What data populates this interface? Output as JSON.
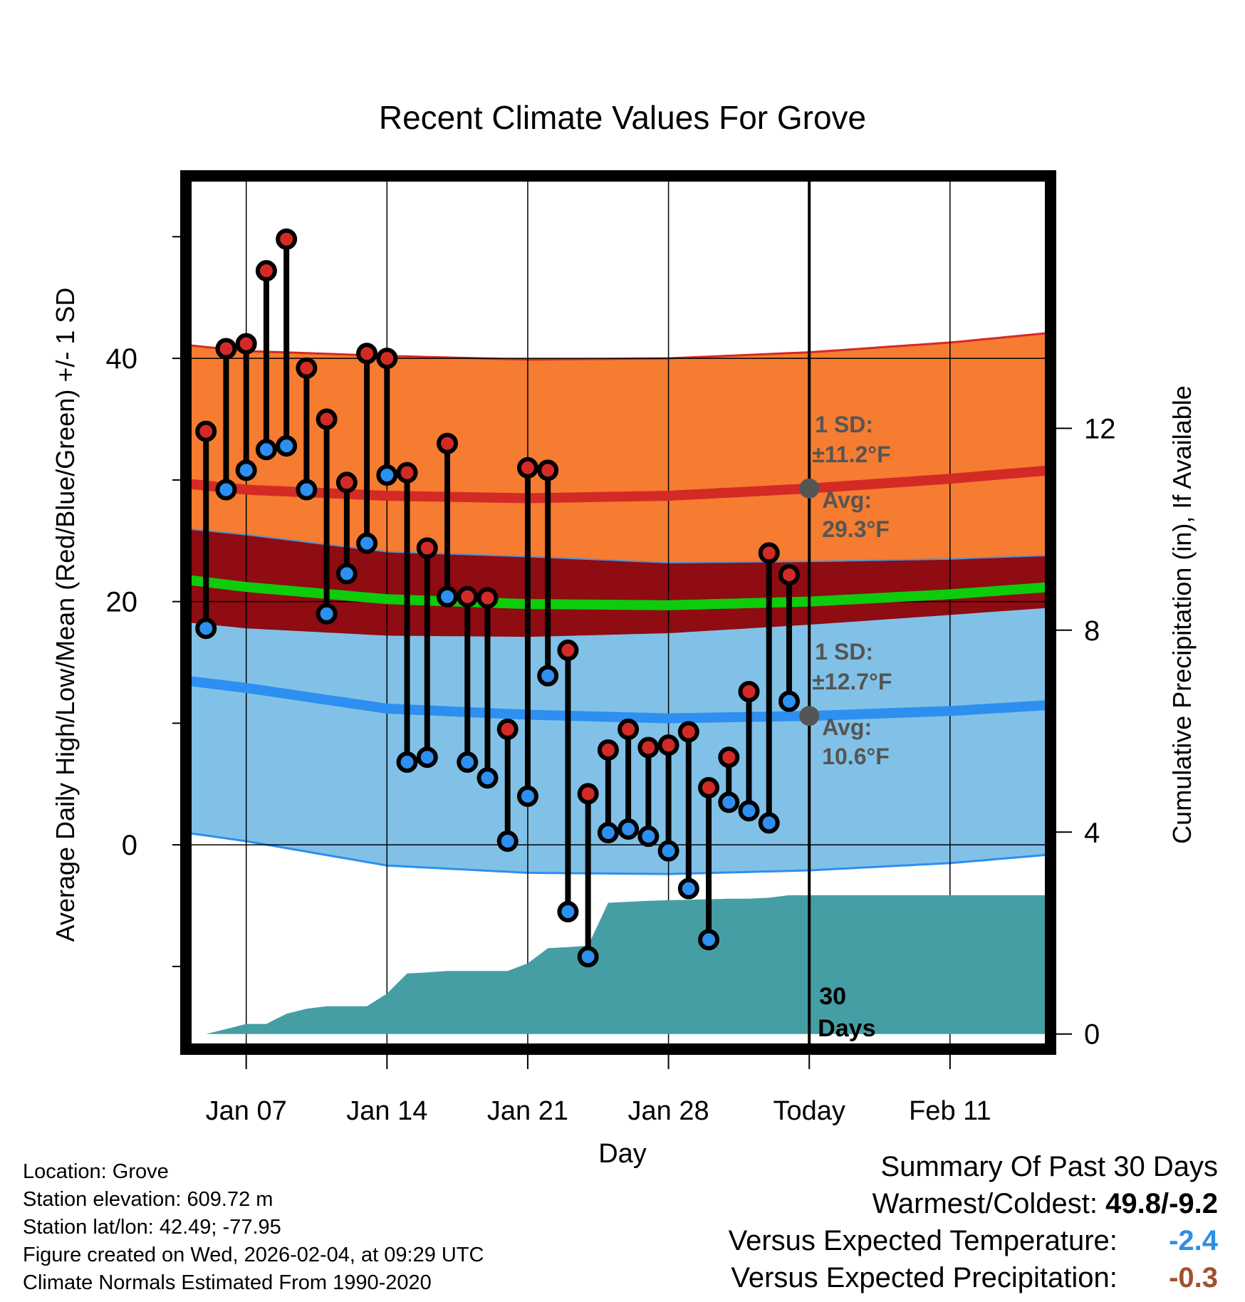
{
  "title": "Recent Climate Values For Grove",
  "chart_data": {
    "type": "line",
    "title": "Recent Climate Values For Grove",
    "xlabel": "Day",
    "ylabel": "Average Daily High/Low/Mean (Red/Blue/Green) +/- 1 SD",
    "y2label": "Cumulative Precipitation (in), If Available",
    "x_start_day": 4,
    "x_end_day": 47,
    "ylim": [
      -16.8,
      55
    ],
    "y2lim": [
      -0.3,
      17
    ],
    "yticks": [
      0,
      20,
      40
    ],
    "yticks_minor": [
      -10,
      10,
      30,
      50
    ],
    "y2ticks": [
      0,
      4,
      8,
      12
    ],
    "xticks": [
      {
        "day": 7,
        "label": "Jan 07"
      },
      {
        "day": 14,
        "label": "Jan 14"
      },
      {
        "day": 21,
        "label": "Jan 21"
      },
      {
        "day": 28,
        "label": "Jan 28"
      },
      {
        "day": 35,
        "label": "Today"
      },
      {
        "day": 42,
        "label": "Feb 11"
      }
    ],
    "today_day": 35,
    "daily": [
      {
        "day": 5,
        "high": 34.0,
        "low": 17.8
      },
      {
        "day": 6,
        "high": 40.8,
        "low": 29.2
      },
      {
        "day": 7,
        "high": 41.2,
        "low": 30.8
      },
      {
        "day": 8,
        "high": 47.2,
        "low": 32.5
      },
      {
        "day": 9,
        "high": 49.8,
        "low": 32.8
      },
      {
        "day": 10,
        "high": 39.2,
        "low": 29.2
      },
      {
        "day": 11,
        "high": 35.0,
        "low": 19.0
      },
      {
        "day": 12,
        "high": 29.8,
        "low": 22.3
      },
      {
        "day": 13,
        "high": 40.4,
        "low": 24.8
      },
      {
        "day": 14,
        "high": 40.0,
        "low": 30.4
      },
      {
        "day": 15,
        "high": 30.6,
        "low": 6.8
      },
      {
        "day": 16,
        "high": 24.4,
        "low": 7.2
      },
      {
        "day": 17,
        "high": 33.0,
        "low": 20.4
      },
      {
        "day": 18,
        "high": 20.4,
        "low": 6.8
      },
      {
        "day": 19,
        "high": 20.3,
        "low": 5.5
      },
      {
        "day": 20,
        "high": 9.5,
        "low": 0.3
      },
      {
        "day": 21,
        "high": 31.0,
        "low": 4.0
      },
      {
        "day": 22,
        "high": 30.8,
        "low": 13.9
      },
      {
        "day": 23,
        "high": 16.0,
        "low": -5.5
      },
      {
        "day": 24,
        "high": 4.2,
        "low": -9.2
      },
      {
        "day": 25,
        "high": 7.8,
        "low": 1.0
      },
      {
        "day": 26,
        "high": 9.5,
        "low": 1.3
      },
      {
        "day": 27,
        "high": 8.0,
        "low": 0.7
      },
      {
        "day": 28,
        "high": 8.2,
        "low": -0.5
      },
      {
        "day": 29,
        "high": 9.3,
        "low": -3.6
      },
      {
        "day": 30,
        "high": 4.7,
        "low": -7.8
      },
      {
        "day": 31,
        "high": 7.2,
        "low": 3.5
      },
      {
        "day": 32,
        "high": 12.6,
        "low": 2.8
      },
      {
        "day": 33,
        "high": 24.0,
        "low": 1.8
      },
      {
        "day": 34,
        "high": 22.2,
        "low": 11.8
      }
    ],
    "normals": [
      {
        "day": 4,
        "high": 29.7,
        "low": 13.5,
        "mean": 21.8,
        "high_sd": 11.4,
        "low_sd": 12.5
      },
      {
        "day": 7,
        "high": 29.2,
        "low": 12.9,
        "mean": 21.2,
        "high_sd": 11.4,
        "low_sd": 12.6
      },
      {
        "day": 14,
        "high": 28.7,
        "low": 11.2,
        "mean": 20.2,
        "high_sd": 11.5,
        "low_sd": 12.9
      },
      {
        "day": 21,
        "high": 28.5,
        "low": 10.7,
        "mean": 19.8,
        "high_sd": 11.4,
        "low_sd": 13.0
      },
      {
        "day": 28,
        "high": 28.7,
        "low": 10.4,
        "mean": 19.7,
        "high_sd": 11.3,
        "low_sd": 12.8
      },
      {
        "day": 35,
        "high": 29.3,
        "low": 10.6,
        "mean": 20.0,
        "high_sd": 11.2,
        "low_sd": 12.7
      },
      {
        "day": 42,
        "high": 30.1,
        "low": 11.0,
        "mean": 20.6,
        "high_sd": 11.2,
        "low_sd": 12.5
      },
      {
        "day": 47,
        "high": 30.8,
        "low": 11.5,
        "mean": 21.2,
        "high_sd": 11.3,
        "low_sd": 12.3
      }
    ],
    "precip_cumulative": [
      {
        "day": 5,
        "value": 0.0
      },
      {
        "day": 6,
        "value": 0.1
      },
      {
        "day": 7,
        "value": 0.2
      },
      {
        "day": 8,
        "value": 0.2
      },
      {
        "day": 9,
        "value": 0.4
      },
      {
        "day": 10,
        "value": 0.5
      },
      {
        "day": 11,
        "value": 0.55
      },
      {
        "day": 12,
        "value": 0.55
      },
      {
        "day": 13,
        "value": 0.55
      },
      {
        "day": 14,
        "value": 0.8
      },
      {
        "day": 15,
        "value": 1.2
      },
      {
        "day": 16,
        "value": 1.22
      },
      {
        "day": 17,
        "value": 1.25
      },
      {
        "day": 18,
        "value": 1.25
      },
      {
        "day": 19,
        "value": 1.25
      },
      {
        "day": 20,
        "value": 1.25
      },
      {
        "day": 21,
        "value": 1.4
      },
      {
        "day": 22,
        "value": 1.7
      },
      {
        "day": 23,
        "value": 1.72
      },
      {
        "day": 24,
        "value": 1.75
      },
      {
        "day": 25,
        "value": 2.6
      },
      {
        "day": 26,
        "value": 2.62
      },
      {
        "day": 27,
        "value": 2.64
      },
      {
        "day": 28,
        "value": 2.65
      },
      {
        "day": 29,
        "value": 2.66
      },
      {
        "day": 30,
        "value": 2.67
      },
      {
        "day": 31,
        "value": 2.68
      },
      {
        "day": 32,
        "value": 2.68
      },
      {
        "day": 33,
        "value": 2.7
      },
      {
        "day": 34,
        "value": 2.75
      },
      {
        "day": 47,
        "value": 2.75
      }
    ],
    "annotations": {
      "high_sd_label": "1 SD:",
      "high_sd_value": "±11.2°F",
      "high_avg_label": "Avg:",
      "high_avg_value": "29.3°F",
      "low_sd_label": "1 SD:",
      "low_sd_value": "±12.7°F",
      "low_avg_label": "Avg:",
      "low_avg_value": "10.6°F",
      "days_number": "30",
      "days_label": "Days"
    },
    "colors": {
      "high_band": "#f57c30",
      "high_line": "#d42a26",
      "overlap_band": "#8e0c12",
      "low_band": "#82c1e7",
      "low_line": "#2d8ff0",
      "mean_line": "#0ccc0c",
      "precip": "#469ea5",
      "high_marker": "#d42a26",
      "low_marker": "#2d8ff0",
      "annotation": "#555555"
    }
  },
  "info": {
    "location": "Location: Grove",
    "elevation": "Station elevation: 609.72 m",
    "latlon": "Station lat/lon: 42.49; -77.95",
    "created": "Figure created on Wed, 2026-02-04, at 09:29 UTC",
    "normals": "Climate Normals Estimated From 1990-2020"
  },
  "summary": {
    "title": "Summary Of Past 30 Days",
    "warmest_label": "Warmest/Coldest:",
    "warmest_value": "49.8/-9.2",
    "temp_label": "Versus Expected Temperature:",
    "temp_value": "-2.4",
    "precip_label": "Versus Expected Precipitation:",
    "precip_value": "-0.3"
  }
}
